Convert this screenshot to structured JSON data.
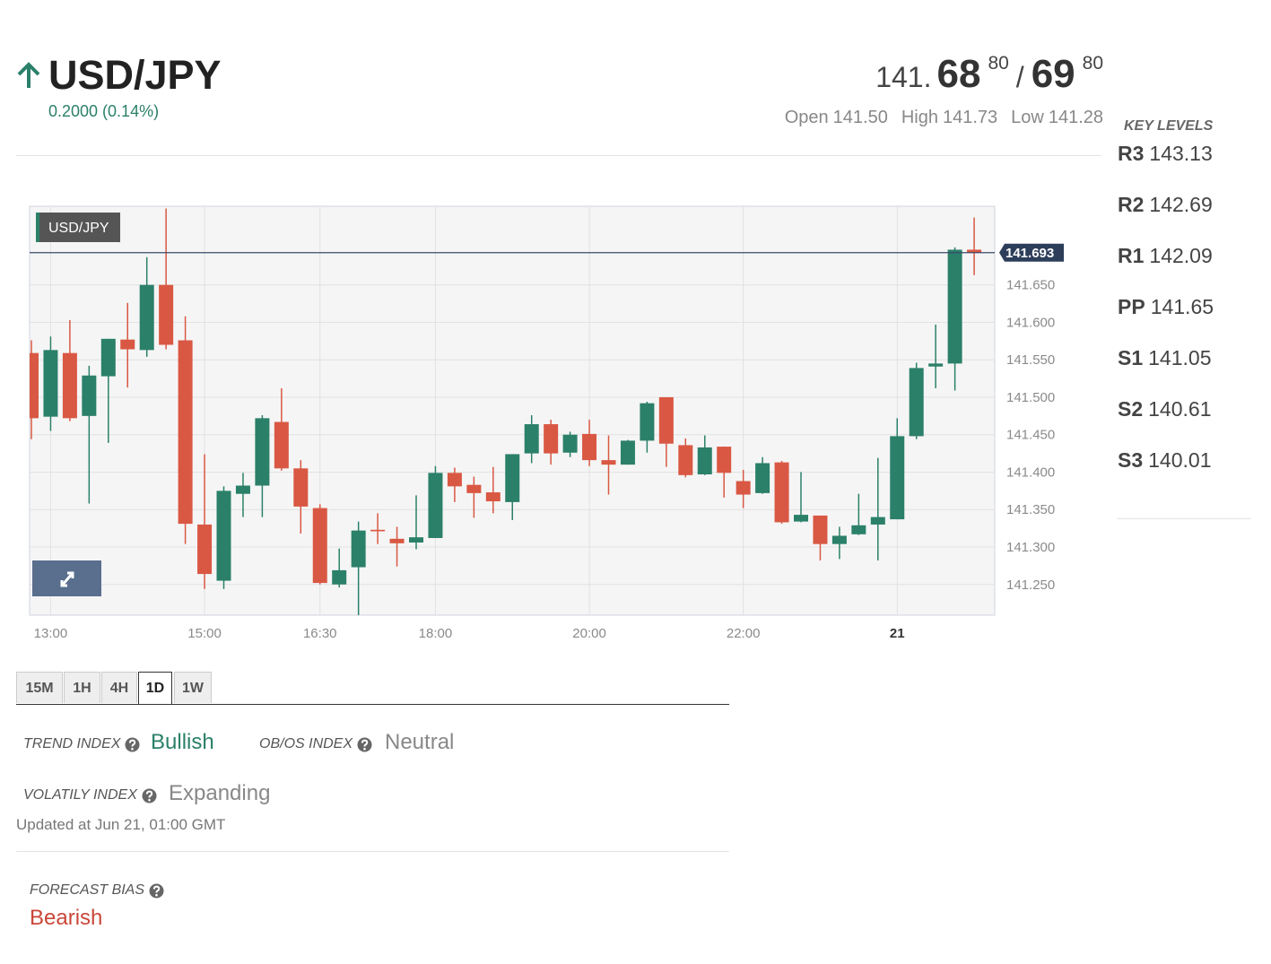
{
  "header": {
    "symbol": "USD/JPY",
    "change": "0.2000 (0.14%)",
    "bid_big": "141.",
    "bid_main": "68",
    "bid_pip": "80",
    "separator": "/",
    "ask_main": "69",
    "ask_pip": "80",
    "open_label": "Open",
    "open_value": "141.50",
    "high_label": "High",
    "high_value": "141.73",
    "low_label": "Low",
    "low_value": "141.28"
  },
  "key_levels": {
    "title": "KEY LEVELS",
    "levels": [
      {
        "name": "R3",
        "value": "143.13"
      },
      {
        "name": "R2",
        "value": "142.69"
      },
      {
        "name": "R1",
        "value": "142.09"
      },
      {
        "name": "PP",
        "value": "141.65"
      },
      {
        "name": "S1",
        "value": "141.05"
      },
      {
        "name": "S2",
        "value": "140.61"
      },
      {
        "name": "S3",
        "value": "140.01"
      }
    ]
  },
  "chart_data": {
    "type": "candlestick",
    "title": "USD/JPY",
    "categories": [
      null,
      "13:00",
      null,
      null,
      null,
      null,
      null,
      null,
      null,
      "15:00",
      null,
      null,
      null,
      null,
      null,
      "16:30",
      null,
      null,
      null,
      null,
      null,
      "18:00",
      null,
      null,
      null,
      null,
      null,
      null,
      null,
      "20:00",
      null,
      null,
      null,
      null,
      null,
      null,
      null,
      "22:00",
      null,
      null,
      null,
      null,
      null,
      null,
      null,
      "21",
      null,
      null,
      null,
      null
    ],
    "open": [
      141.559,
      141.474,
      141.559,
      141.475,
      141.528,
      141.577,
      141.563,
      141.65,
      141.576,
      141.33,
      141.255,
      141.371,
      141.382,
      141.467,
      141.405,
      141.352,
      141.25,
      141.273,
      141.323,
      141.311,
      141.306,
      141.312,
      141.399,
      141.383,
      141.373,
      141.36,
      141.425,
      141.464,
      141.426,
      141.451,
      141.416,
      141.41,
      141.442,
      141.5,
      141.436,
      141.397,
      141.434,
      141.388,
      141.372,
      141.413,
      141.334,
      141.342,
      141.304,
      141.317,
      141.33,
      141.337,
      141.448,
      141.541,
      141.545,
      141.697
    ],
    "high": [
      141.576,
      141.581,
      141.603,
      141.542,
      141.578,
      141.626,
      141.687,
      141.752,
      141.608,
      141.424,
      141.381,
      141.399,
      141.476,
      141.512,
      141.416,
      141.357,
      141.298,
      141.334,
      141.345,
      141.327,
      141.369,
      141.408,
      141.406,
      141.394,
      141.407,
      141.424,
      141.476,
      141.47,
      141.454,
      141.47,
      141.449,
      141.443,
      141.494,
      141.5,
      141.445,
      141.449,
      141.434,
      141.403,
      141.42,
      141.415,
      141.4,
      141.342,
      141.327,
      141.371,
      141.419,
      141.472,
      141.546,
      141.597,
      141.7,
      141.74
    ],
    "low": [
      141.444,
      141.455,
      141.468,
      141.358,
      141.439,
      141.513,
      141.554,
      141.564,
      141.304,
      141.244,
      141.244,
      141.34,
      141.34,
      141.402,
      141.318,
      141.25,
      141.246,
      141.209,
      141.304,
      141.274,
      141.297,
      141.312,
      141.36,
      141.339,
      141.345,
      141.336,
      141.412,
      141.41,
      141.42,
      141.408,
      141.37,
      141.41,
      141.426,
      141.407,
      141.393,
      141.396,
      141.366,
      141.352,
      141.371,
      141.331,
      141.333,
      141.282,
      141.284,
      141.316,
      141.282,
      141.337,
      141.444,
      141.512,
      141.509,
      141.663
    ],
    "close": [
      141.472,
      141.563,
      141.472,
      141.529,
      141.578,
      141.564,
      141.65,
      141.57,
      141.331,
      141.264,
      141.375,
      141.382,
      141.472,
      141.405,
      141.354,
      141.252,
      141.269,
      141.322,
      141.321,
      141.305,
      141.313,
      141.399,
      141.381,
      141.372,
      141.361,
      141.424,
      141.464,
      141.425,
      141.45,
      141.416,
      141.41,
      141.442,
      141.492,
      141.438,
      141.396,
      141.433,
      141.399,
      141.37,
      141.412,
      141.333,
      141.343,
      141.304,
      141.315,
      141.329,
      141.34,
      141.448,
      141.539,
      141.545,
      141.697,
      141.693
    ],
    "last_price": 141.693,
    "ylim": [
      141.209,
      141.755
    ],
    "yticks": [
      {
        "value": 141.25,
        "label": "141.250"
      },
      {
        "value": 141.3,
        "label": "141.300"
      },
      {
        "value": 141.35,
        "label": "141.350"
      },
      {
        "value": 141.4,
        "label": "141.400"
      },
      {
        "value": 141.45,
        "label": "141.450"
      },
      {
        "value": 141.5,
        "label": "141.500"
      },
      {
        "value": 141.55,
        "label": "141.550"
      },
      {
        "value": 141.6,
        "label": "141.600"
      },
      {
        "value": 141.65,
        "label": "141.650"
      }
    ],
    "up_color": "#2b8069",
    "down_color": "#d95843",
    "grid": true
  },
  "timeframes": {
    "tabs": [
      "15M",
      "1H",
      "4H",
      "1D",
      "1W"
    ],
    "active": 3
  },
  "indexes": {
    "trend_label": "TREND INDEX",
    "trend_value": "Bullish",
    "obos_label": "OB/OS INDEX",
    "obos_value": "Neutral",
    "volatility_label": "VOLATILY INDEX",
    "volatility_value": "Expanding",
    "updated": "Updated at Jun 21, 01:00 GMT"
  },
  "forecast": {
    "label": "FORECAST BIAS",
    "value": "Bearish"
  }
}
